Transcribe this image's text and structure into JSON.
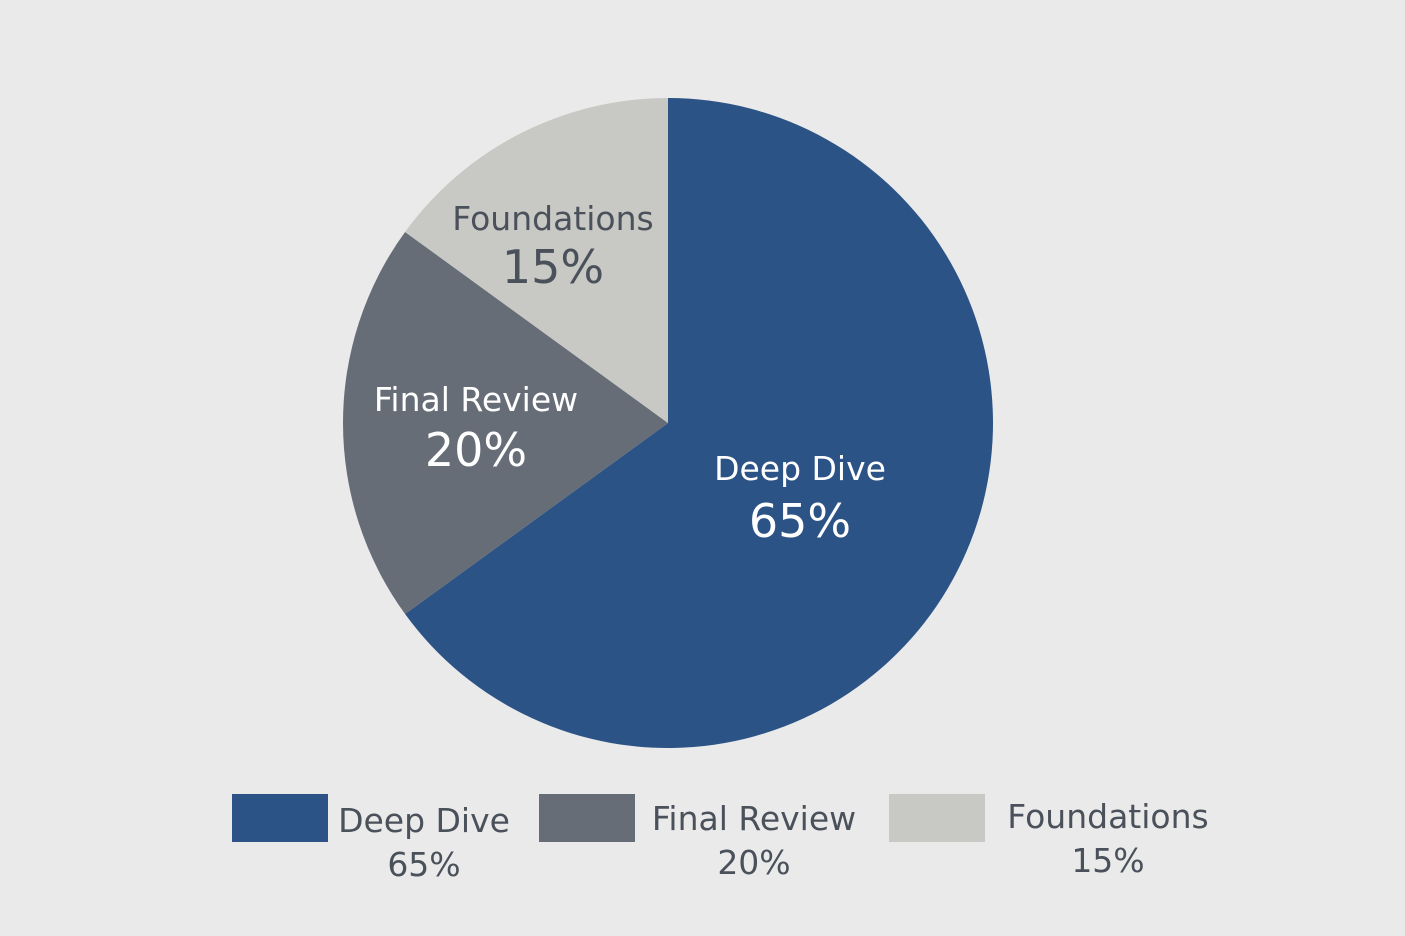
{
  "chart_data": {
    "type": "pie",
    "title": "",
    "start_angle_deg": 0,
    "direction": "clockwise",
    "legend_position": "bottom",
    "slices": [
      {
        "label": "Deep Dive",
        "value": 65,
        "display": "65%",
        "color": "#2b5386",
        "label_color": "#ffffff"
      },
      {
        "label": "Final Review",
        "value": 20,
        "display": "20%",
        "color": "#666d77",
        "label_color": "#ffffff"
      },
      {
        "label": "Foundations",
        "value": 15,
        "display": "15%",
        "color": "#c8c8c4",
        "label_color": "#4a515a"
      }
    ]
  },
  "colors": {
    "background": "#eaeaea",
    "legend_text": "#4a515a"
  }
}
